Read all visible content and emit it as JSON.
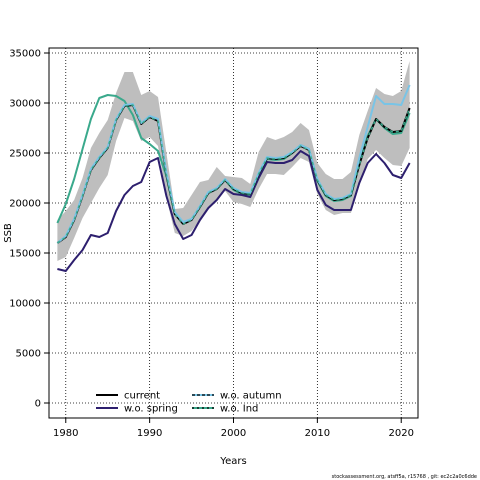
{
  "chart_data": {
    "type": "line",
    "xlabel": "Years",
    "ylabel": "SSB",
    "xlim": [
      1978,
      2022
    ],
    "ylim": [
      -1500,
      35500
    ],
    "xticks": [
      1980,
      1990,
      2000,
      2010,
      2020
    ],
    "yticks": [
      0,
      5000,
      10000,
      15000,
      20000,
      25000,
      30000,
      35000
    ],
    "grid": true,
    "legend_position": "bottom-left",
    "x": [
      1979,
      1980,
      1981,
      1982,
      1983,
      1984,
      1985,
      1986,
      1987,
      1988,
      1989,
      1990,
      1991,
      1992,
      1993,
      1994,
      1995,
      1996,
      1997,
      1998,
      1999,
      2000,
      2001,
      2002,
      2003,
      2004,
      2005,
      2006,
      2007,
      2008,
      2009,
      2010,
      2011,
      2012,
      2013,
      2014,
      2015,
      2016,
      2017,
      2018,
      2019,
      2020,
      2021
    ],
    "confidence_band": {
      "color": "#bebebe",
      "lower": [
        14200,
        14600,
        16500,
        18500,
        20000,
        21500,
        22800,
        26200,
        28500,
        28200,
        26200,
        26600,
        25700,
        20500,
        17000,
        16700,
        17200,
        18300,
        19500,
        20400,
        21200,
        20100,
        19900,
        19600,
        21400,
        22900,
        22900,
        22800,
        23600,
        24500,
        24100,
        20900,
        19300,
        18800,
        19000,
        19000,
        21700,
        24400,
        25300,
        24500,
        23800,
        23700,
        25500
      ],
      "upper": [
        18300,
        19200,
        20300,
        22500,
        25500,
        27000,
        28300,
        31000,
        33100,
        33100,
        30800,
        31200,
        30600,
        25000,
        19400,
        19500,
        20800,
        22100,
        22300,
        23600,
        22700,
        22600,
        22500,
        21900,
        25100,
        26600,
        26300,
        26600,
        27100,
        28000,
        27300,
        24000,
        22900,
        22400,
        22400,
        23100,
        26800,
        29200,
        31500,
        30900,
        30700,
        31200,
        34200
      ]
    },
    "series": [
      {
        "name": "current",
        "color": "#000000",
        "dash": false,
        "values": [
          16000,
          16600,
          18300,
          20700,
          23300,
          24500,
          25500,
          28300,
          29700,
          29800,
          27900,
          28600,
          28200,
          22800,
          18900,
          17900,
          18300,
          19600,
          21000,
          21400,
          22300,
          21400,
          21000,
          20900,
          22900,
          24500,
          24400,
          24500,
          25000,
          25700,
          25300,
          22300,
          20800,
          20300,
          20400,
          20800,
          23800,
          26500,
          28400,
          27600,
          27100,
          27200,
          29500
        ]
      },
      {
        "name": "w.o. spring",
        "color": "#2d1f6e",
        "dash": false,
        "values": [
          13400,
          13200,
          14300,
          15300,
          16800,
          16600,
          17000,
          19200,
          20800,
          21700,
          22100,
          24100,
          24500,
          20700,
          17900,
          16400,
          16800,
          18300,
          19500,
          20300,
          21400,
          20900,
          20800,
          20600,
          22500,
          24100,
          24000,
          24000,
          24300,
          25200,
          24700,
          21300,
          19800,
          19300,
          19300,
          19300,
          22000,
          24000,
          24900,
          24000,
          22800,
          22500,
          24000
        ]
      },
      {
        "name": "w.o. autumn",
        "color": "#79c4e6",
        "dash": false,
        "values": [
          16000,
          16700,
          18400,
          20800,
          23400,
          24600,
          25600,
          28400,
          29800,
          29900,
          28000,
          28700,
          28400,
          23000,
          19100,
          18100,
          18400,
          19700,
          21100,
          21500,
          22400,
          21500,
          21100,
          21000,
          23000,
          24600,
          24500,
          24600,
          25100,
          25800,
          25400,
          22400,
          20900,
          20400,
          20500,
          20900,
          24500,
          27600,
          30700,
          29900,
          29900,
          29800,
          31800
        ]
      },
      {
        "name": "w.o. Ind",
        "color": "#3aa98c",
        "dash": false,
        "values": [
          18000,
          19900,
          22400,
          25400,
          28400,
          30500,
          30800,
          30700,
          30200,
          28800,
          26500,
          25900,
          25200,
          22700,
          18900,
          18000,
          18400,
          19600,
          21000,
          21400,
          22300,
          21300,
          20900,
          20700,
          22800,
          24400,
          24300,
          24400,
          25000,
          25800,
          25400,
          22200,
          20700,
          20200,
          20300,
          20700,
          23900,
          26700,
          28400,
          27500,
          26900,
          27000,
          29000
        ]
      }
    ],
    "dashed_overlay": {
      "series": "current",
      "color": "#3aa98c"
    }
  },
  "legend": {
    "items": [
      {
        "label": "current",
        "color": "#000000"
      },
      {
        "label": "w.o. spring",
        "color": "#2d1f6e"
      },
      {
        "label": "w.o. autumn",
        "color": "#79c4e6"
      },
      {
        "label": "w.o. Ind",
        "color": "#3aa98c"
      }
    ]
  },
  "footer": {
    "text": "stockassessment.org, atsff5a, r15768 , git: ec2c2a0c6dde"
  }
}
